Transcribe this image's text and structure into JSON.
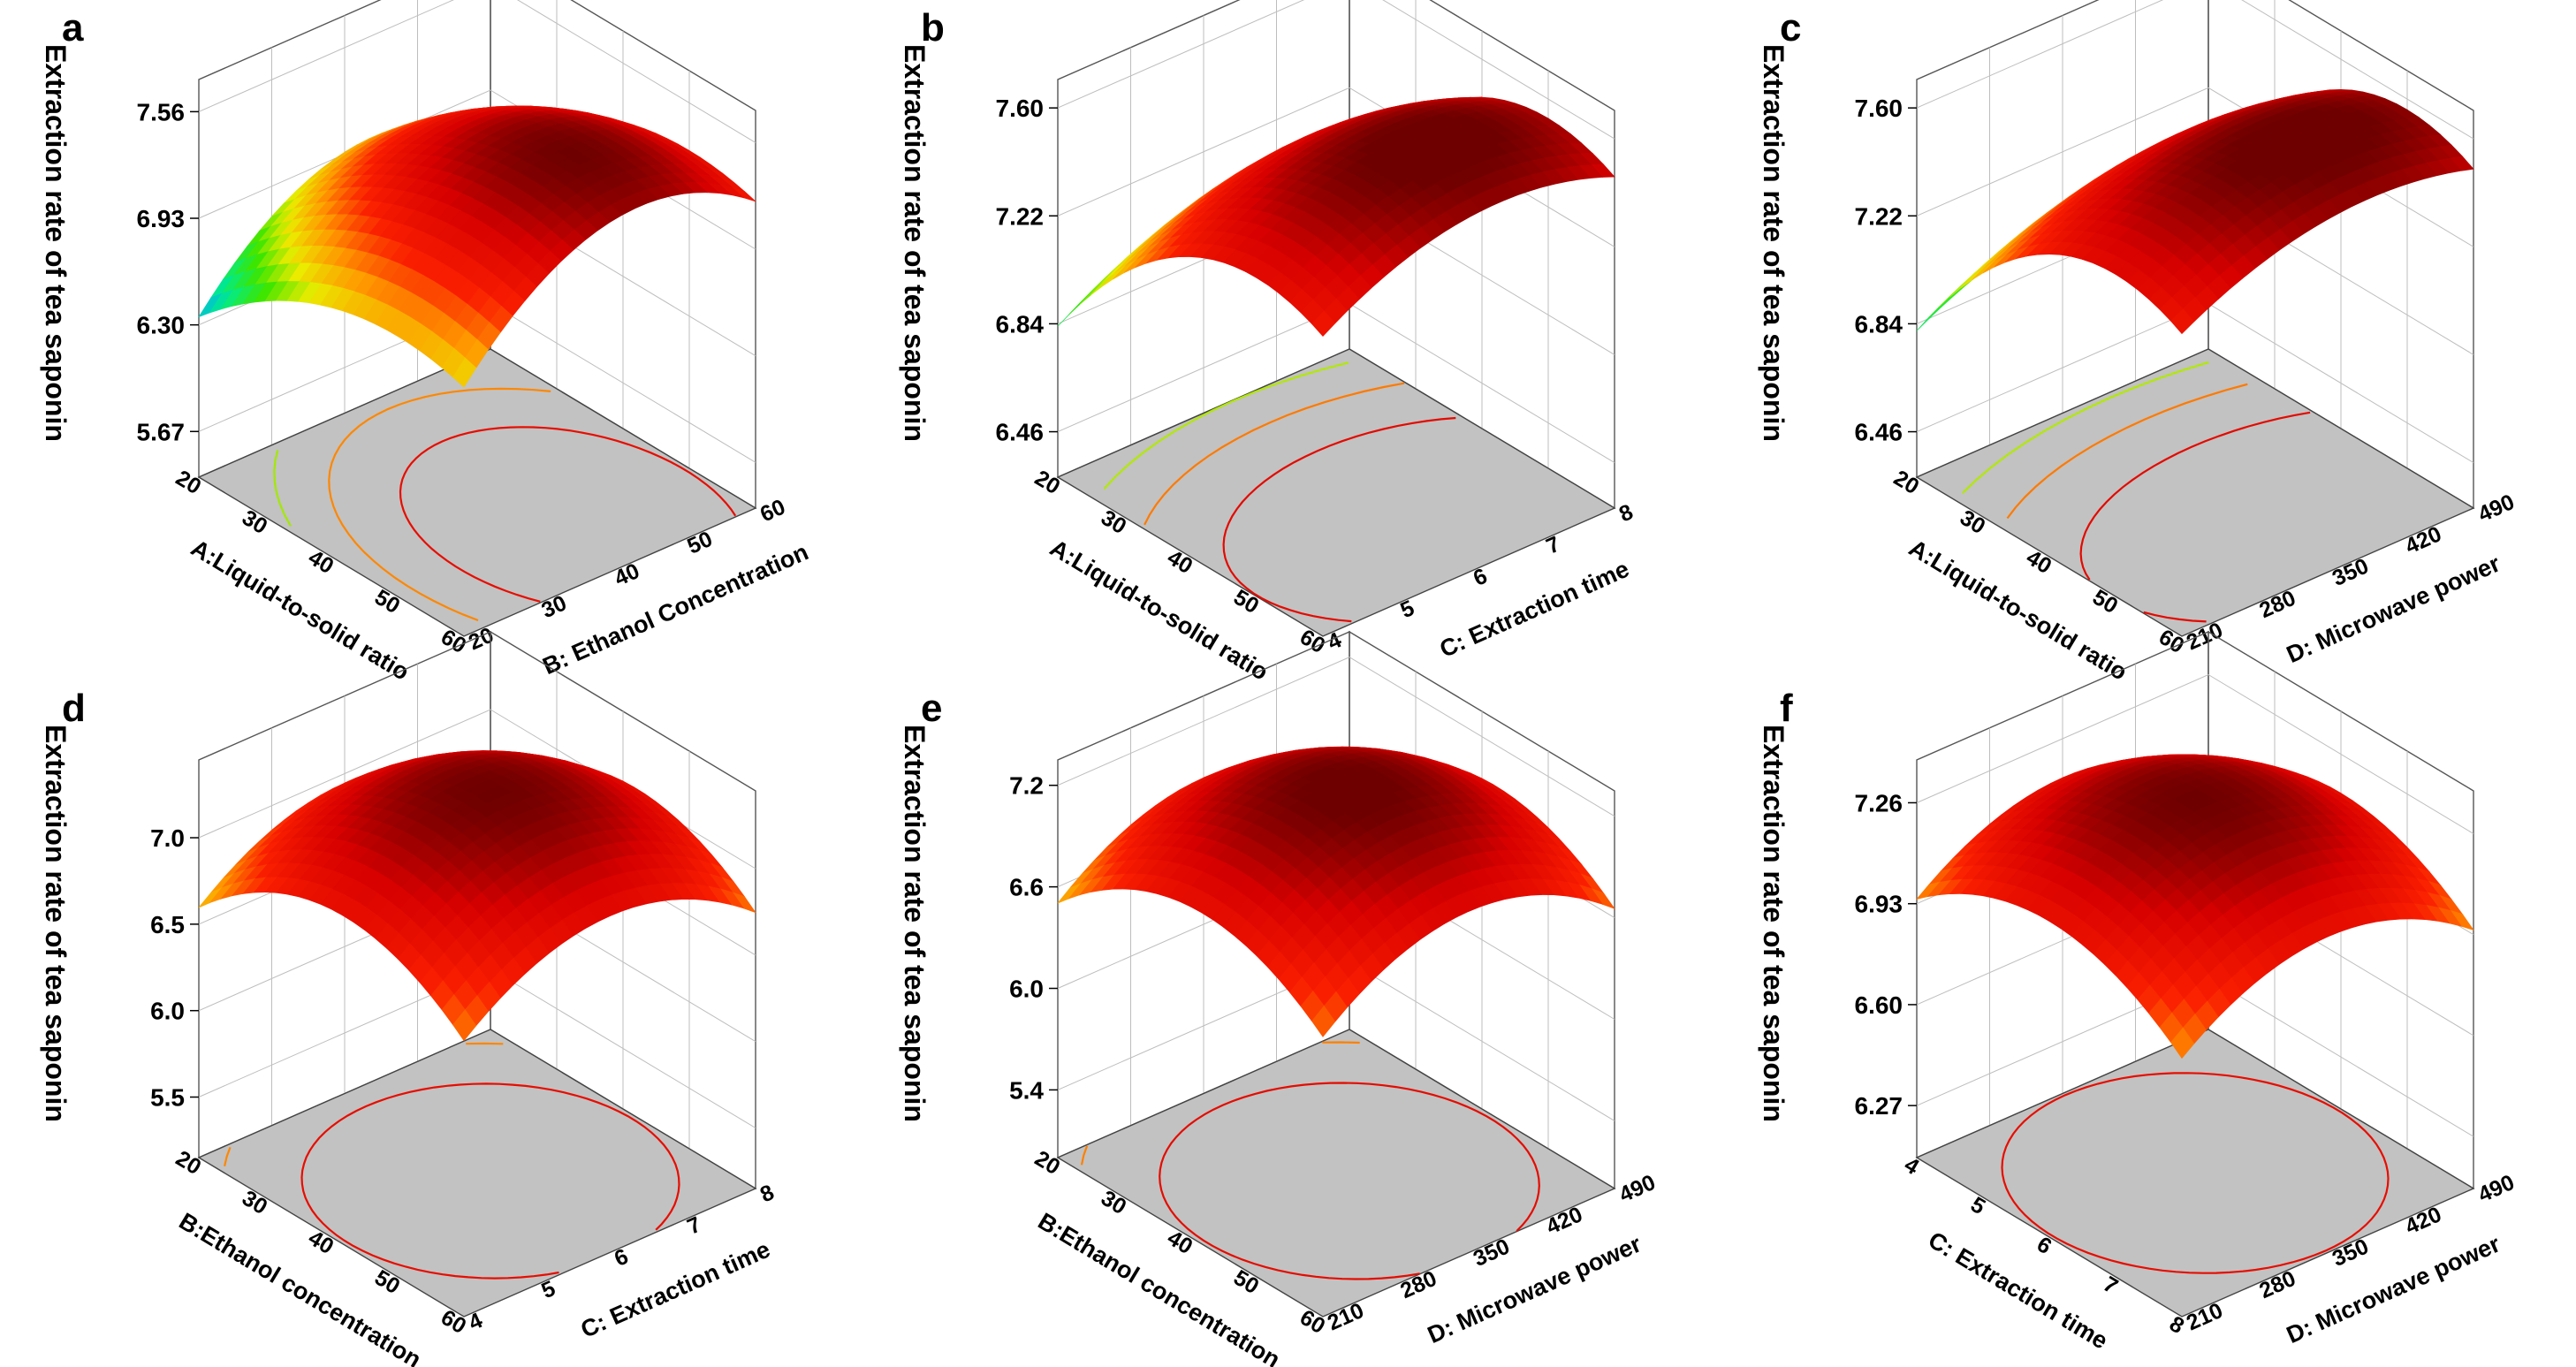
{
  "figure": {
    "background": "#ffffff",
    "floor_color": "#c2c2c2"
  },
  "chart_data": [
    {
      "panel": "a",
      "type": "surface3d",
      "zlabel": "Extraction rate of tea saponin",
      "xlabel": "A:Liquid-to-solid ratio",
      "ylabel": "B: Ethanol Concentration",
      "x_ticks": [
        "20",
        "30",
        "40",
        "50",
        "60"
      ],
      "y_ticks": [
        "20",
        "30",
        "40",
        "50",
        "60"
      ],
      "z_ticks": [
        "5.67",
        "6.30",
        "6.93",
        "7.56"
      ],
      "x_range": [
        20,
        60
      ],
      "y_range": [
        20,
        60
      ],
      "z_range": [
        5.4,
        7.75
      ],
      "colormap_range": [
        5.9,
        7.55
      ],
      "model": {
        "x0": 50,
        "y0": 44,
        "zmax": 7.55,
        "ax": 1.05,
        "ay": 1.7,
        "axy": 0
      }
    },
    {
      "panel": "b",
      "type": "surface3d",
      "zlabel": "Extraction rate of tea saponin",
      "xlabel": "A:Liquid-to-solid ratio",
      "ylabel": "C: Extraction time",
      "x_ticks": [
        "20",
        "30",
        "40",
        "50",
        "60"
      ],
      "y_ticks": [
        "4",
        "5",
        "6",
        "7",
        "8"
      ],
      "z_ticks": [
        "6.46",
        "6.84",
        "7.22",
        "7.60"
      ],
      "x_range": [
        20,
        60
      ],
      "y_range": [
        4,
        8
      ],
      "z_range": [
        6.3,
        7.7
      ],
      "colormap_range": [
        6.35,
        7.6
      ],
      "model": {
        "x0": 50,
        "y0": 6.4,
        "zmax": 7.62,
        "ax": 1.05,
        "ay": 0.55,
        "axy": 0
      }
    },
    {
      "panel": "c",
      "type": "surface3d",
      "zlabel": "Extraction rate of tea saponin",
      "xlabel": "A:Liquid-to-solid ratio",
      "ylabel": "D: Microwave power",
      "x_ticks": [
        "20",
        "30",
        "40",
        "50",
        "60"
      ],
      "y_ticks": [
        "210",
        "280",
        "350",
        "420",
        "490"
      ],
      "z_ticks": [
        "6.46",
        "6.84",
        "7.22",
        "7.60"
      ],
      "x_range": [
        20,
        60
      ],
      "y_range": [
        210,
        490
      ],
      "z_range": [
        6.3,
        7.7
      ],
      "colormap_range": [
        6.35,
        7.6
      ],
      "model": {
        "x0": 50,
        "y0": 390,
        "zmax": 7.62,
        "ax": 1.1,
        "ay": 0.45,
        "axy": 0
      }
    },
    {
      "panel": "d",
      "type": "surface3d",
      "zlabel": "Extraction rate of tea saponin",
      "xlabel": "B:Ethanol concentration",
      "ylabel": "C: Extraction time",
      "x_ticks": [
        "20",
        "30",
        "40",
        "50",
        "60"
      ],
      "y_ticks": [
        "4",
        "5",
        "6",
        "7",
        "8"
      ],
      "z_ticks": [
        "5.5",
        "6.0",
        "6.5",
        "7.0"
      ],
      "x_range": [
        20,
        60
      ],
      "y_range": [
        4,
        8
      ],
      "z_range": [
        5.15,
        7.45
      ],
      "colormap_range": [
        5.25,
        7.4
      ],
      "model": {
        "x0": 42,
        "y0": 6.0,
        "zmax": 7.4,
        "ax": 1.5,
        "ay": 1.4,
        "axy": 0
      }
    },
    {
      "panel": "e",
      "type": "surface3d",
      "zlabel": "Extraction rate of tea saponin",
      "xlabel": "B:Ethanol concentration",
      "ylabel": "D: Microwave power",
      "x_ticks": [
        "20",
        "30",
        "40",
        "50",
        "60"
      ],
      "y_ticks": [
        "210",
        "280",
        "350",
        "420",
        "490"
      ],
      "z_ticks": [
        "5.4",
        "6.0",
        "6.6",
        "7.2"
      ],
      "x_range": [
        20,
        60
      ],
      "y_range": [
        210,
        490
      ],
      "z_range": [
        5.0,
        7.35
      ],
      "colormap_range": [
        5.1,
        7.3
      ],
      "model": {
        "x0": 42,
        "y0": 350,
        "zmax": 7.32,
        "ax": 1.5,
        "ay": 1.45,
        "axy": 0
      }
    },
    {
      "panel": "f",
      "type": "surface3d",
      "zlabel": "Extraction rate of tea saponin",
      "xlabel": "C: Extraction time",
      "ylabel": "D: Microwave power",
      "x_ticks": [
        "4",
        "5",
        "6",
        "7",
        "8"
      ],
      "y_ticks": [
        "210",
        "280",
        "350",
        "420",
        "490"
      ],
      "z_ticks": [
        "6.27",
        "6.60",
        "6.93",
        "7.26"
      ],
      "x_range": [
        4,
        8
      ],
      "y_range": [
        210,
        490
      ],
      "z_range": [
        6.1,
        7.4
      ],
      "colormap_range": [
        6.15,
        7.32
      ],
      "model": {
        "x0": 6,
        "y0": 350,
        "zmax": 7.32,
        "ax": 0.75,
        "ay": 0.75,
        "axy": 0
      }
    }
  ]
}
